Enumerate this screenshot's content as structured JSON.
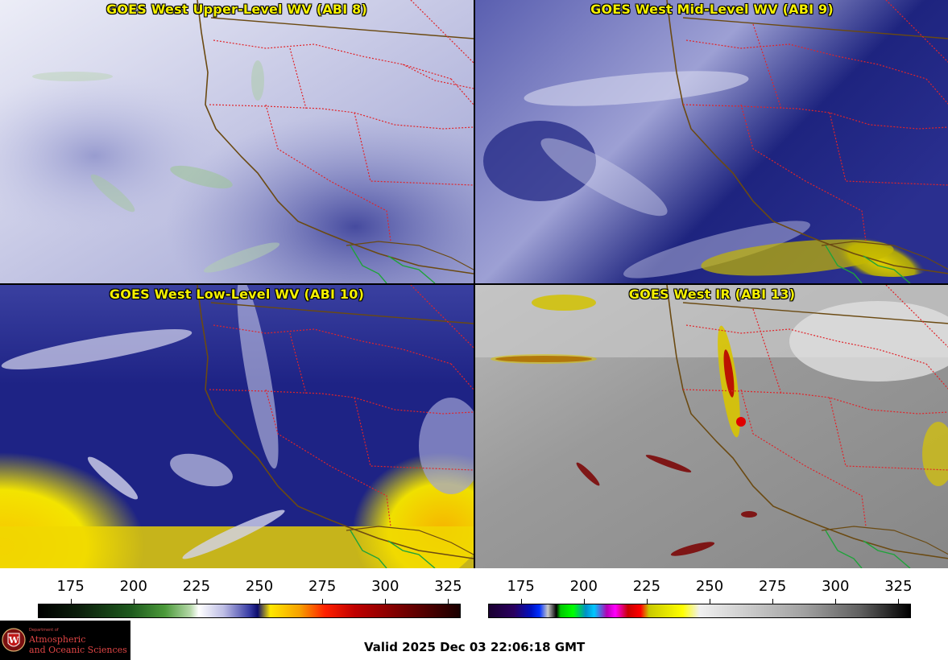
{
  "panels": [
    {
      "title": "GOES West Upper-Level WV (ABI 8)"
    },
    {
      "title": "GOES West Mid-Level WV (ABI 9)"
    },
    {
      "title": "GOES West Low-Level WV (ABI 10)"
    },
    {
      "title": "GOES West IR (ABI 13)"
    }
  ],
  "colorbar_wv": {
    "ticks": [
      "175",
      "200",
      "225",
      "250",
      "275",
      "300",
      "325"
    ],
    "range": [
      162,
      330
    ]
  },
  "colorbar_ir": {
    "ticks": [
      "175",
      "200",
      "225",
      "250",
      "275",
      "300",
      "325"
    ],
    "range": [
      162,
      330
    ]
  },
  "logo": {
    "department": "Department of",
    "line1": "Atmospheric",
    "line2": "and Oceanic Sciences",
    "seal_letter": "W"
  },
  "valid_time": "Valid 2025 Dec 03 22:06:18 GMT",
  "colors": {
    "title_text": "#f4f000",
    "coastline": "#6b4a12",
    "state_border": "#e0242a",
    "mexico_border": "#1fa33a",
    "background_dark_blue": "#1a1f7a"
  }
}
